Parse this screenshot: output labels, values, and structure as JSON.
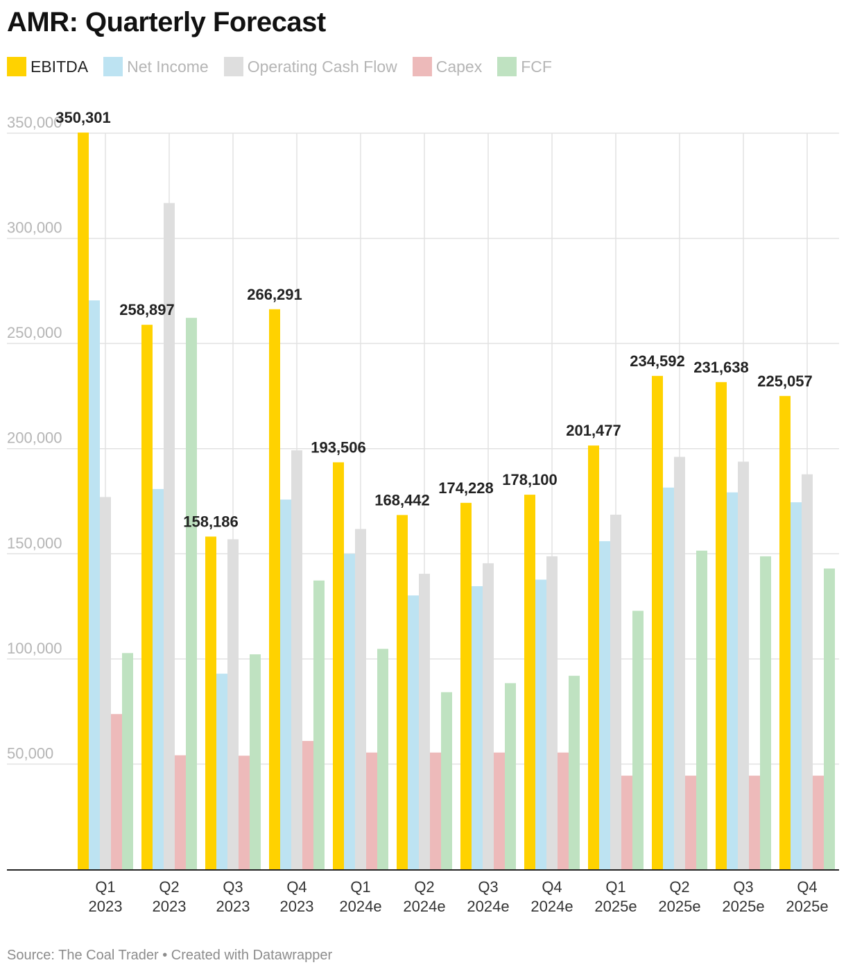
{
  "title": "AMR: Quarterly Forecast",
  "footer": {
    "source": "Source: The Coal Trader",
    "separator": " • ",
    "credit": "Created with Datawrapper"
  },
  "legend": [
    {
      "name": "EBITDA",
      "color": "#FFD200",
      "active": true
    },
    {
      "name": "Net Income",
      "color": "#BDE3F2",
      "active": false
    },
    {
      "name": "Operating Cash Flow",
      "color": "#DEDEDE",
      "active": false
    },
    {
      "name": "Capex",
      "color": "#EDBABA",
      "active": false
    },
    {
      "name": "FCF",
      "color": "#BFE2C1",
      "active": false
    }
  ],
  "chart_data": {
    "type": "bar",
    "title": "AMR: Quarterly Forecast",
    "xlabel": "",
    "ylabel": "",
    "ylim": [
      0,
      350000
    ],
    "yticks": [
      50000,
      100000,
      150000,
      200000,
      250000,
      300000,
      350000
    ],
    "ytick_labels": [
      "50,000",
      "100,000",
      "150,000",
      "200,000",
      "250,000",
      "300,000",
      "350,000"
    ],
    "grid": true,
    "legend_position": "top-left",
    "categories": [
      [
        "Q1",
        "2023"
      ],
      [
        "Q2",
        "2023"
      ],
      [
        "Q3",
        "2023"
      ],
      [
        "Q4",
        "2023"
      ],
      [
        "Q1",
        "2024e"
      ],
      [
        "Q2",
        "2024e"
      ],
      [
        "Q3",
        "2024e"
      ],
      [
        "Q4",
        "2024e"
      ],
      [
        "Q1",
        "2025e"
      ],
      [
        "Q2",
        "2025e"
      ],
      [
        "Q3",
        "2025e"
      ],
      [
        "Q4",
        "2025e"
      ]
    ],
    "series": [
      {
        "name": "EBITDA",
        "color": "#FFD200",
        "values": [
          350301,
          258897,
          158186,
          266291,
          193506,
          168442,
          174228,
          178100,
          201477,
          234592,
          231638,
          225057
        ],
        "labels": [
          "350,301",
          "258,897",
          "158,186",
          "266,291",
          "193,506",
          "168,442",
          "174,228",
          "178,100",
          "201,477",
          "234,592",
          "231,638",
          "225,057"
        ]
      },
      {
        "name": "Net Income",
        "color": "#BDE3F2",
        "values": [
          270500,
          180800,
          93000,
          175800,
          150000,
          130200,
          134600,
          137700,
          156000,
          181500,
          179200,
          174500
        ]
      },
      {
        "name": "Operating Cash Flow",
        "color": "#DEDEDE",
        "values": [
          177000,
          316800,
          156900,
          199200,
          161800,
          140500,
          145500,
          148800,
          168600,
          196100,
          193800,
          187800
        ]
      },
      {
        "name": "Capex",
        "color": "#EDBABA",
        "values": [
          73800,
          54200,
          54000,
          61000,
          55500,
          55500,
          55500,
          55500,
          44500,
          44500,
          44500,
          44500
        ]
      },
      {
        "name": "FCF",
        "color": "#BFE2C1",
        "values": [
          102800,
          262200,
          102200,
          137300,
          104800,
          84200,
          88500,
          92000,
          122900,
          151500,
          148800,
          143000
        ]
      }
    ]
  }
}
